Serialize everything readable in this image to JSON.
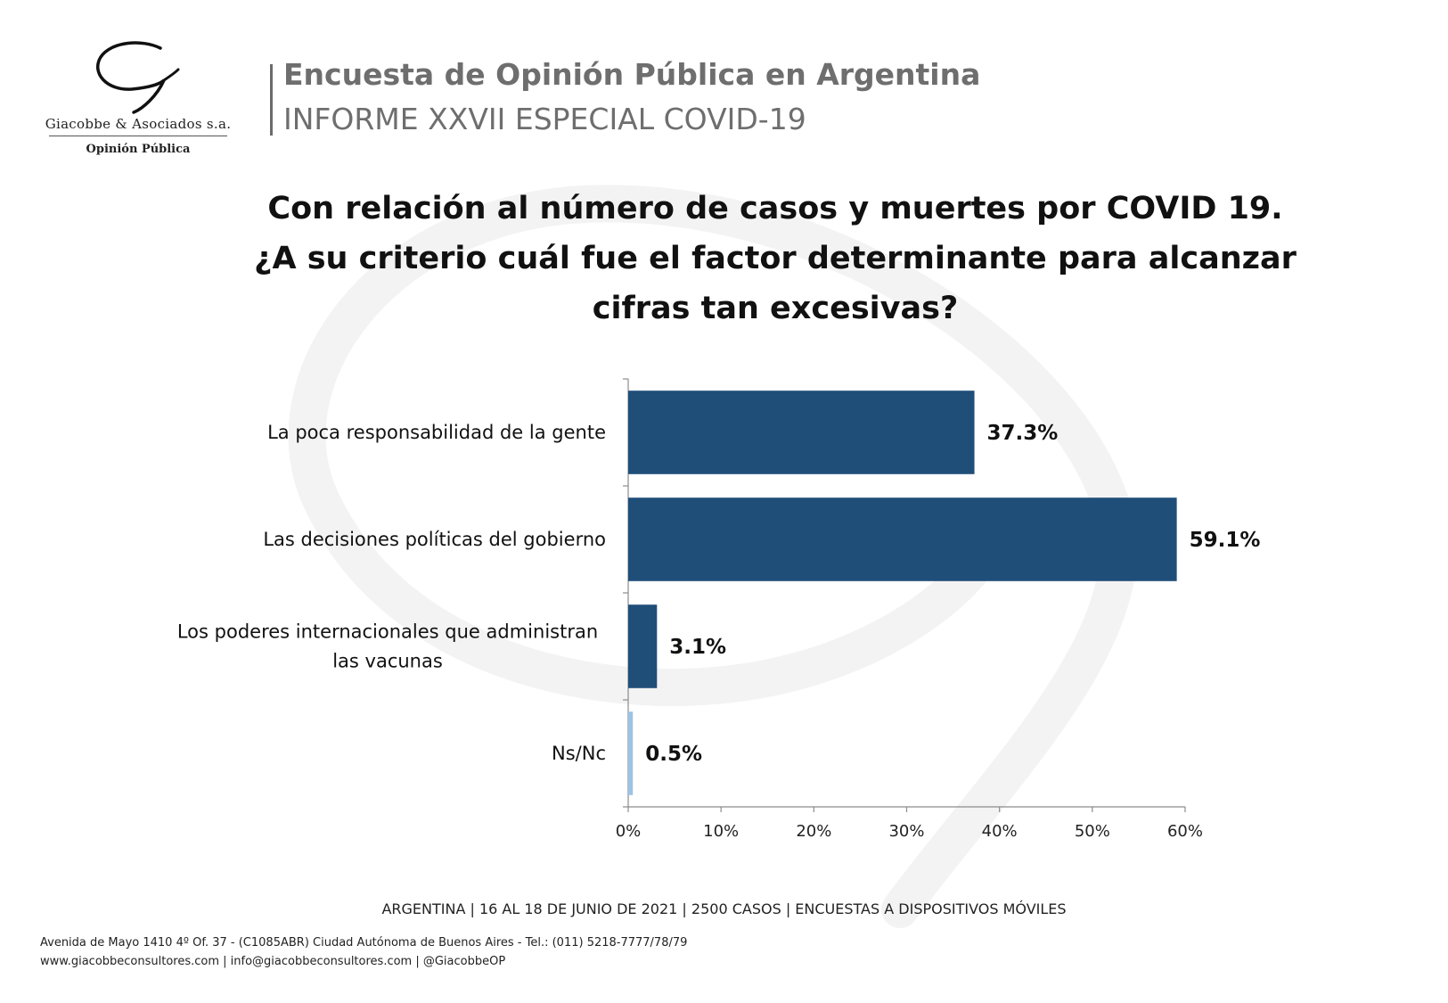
{
  "logo": {
    "name": "Giacobbe & Asociados s.a.",
    "subtitle": "Opinión Pública"
  },
  "header": {
    "title": "Encuesta de Opinión Pública en Argentina",
    "subtitle": "INFORME XXVII ESPECIAL COVID-19"
  },
  "question": {
    "line1": "Con relación al número de casos y muertes por COVID 19.",
    "line2": "¿A su criterio cuál fue el factor determinante para alcanzar",
    "line3": "cifras tan excesivas?"
  },
  "chart_data": {
    "type": "bar",
    "orientation": "horizontal",
    "categories": [
      [
        "La poca responsabilidad de la gente"
      ],
      [
        "Las decisiones políticas del gobierno"
      ],
      [
        "Los poderes internacionales que administran",
        "las vacunas"
      ],
      [
        "Ns/Nc"
      ]
    ],
    "values": [
      37.3,
      59.1,
      3.1,
      0.5
    ],
    "value_labels": [
      "37.3%",
      "59.1%",
      "3.1%",
      "0.5%"
    ],
    "bar_colors": [
      "#1f4e79",
      "#1f4e79",
      "#1f4e79",
      "#9dc3e6"
    ],
    "xlim": [
      0,
      60
    ],
    "x_ticks": [
      0,
      10,
      20,
      30,
      40,
      50,
      60
    ],
    "x_tick_labels": [
      "0%",
      "10%",
      "20%",
      "30%",
      "40%",
      "50%",
      "60%"
    ],
    "grid": false,
    "legend": "none"
  },
  "footer": {
    "survey_info": "ARGENTINA | 16 AL 18 DE JUNIO DE 2021 | 2500 CASOS | ENCUESTAS A DISPOSITIVOS MÓVILES",
    "address": "Avenida de Mayo 1410 4º Of. 37 - (C1085ABR) Ciudad Autónoma de Buenos Aires - Tel.: (011) 5218-7777/78/79",
    "links": "www.giacobbeconsultores.com | info@giacobbeconsultores.com | @GiacobbeOP"
  }
}
